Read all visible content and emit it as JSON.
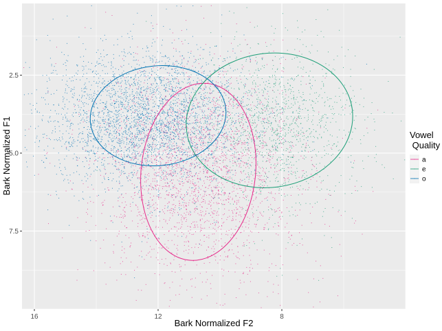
{
  "chart_data": {
    "type": "scatter",
    "xlabel": "Bark Normalized F2",
    "ylabel": "Bark Normalized F1",
    "x_reversed": true,
    "y_reversed": true,
    "xlim": [
      16.4,
      4.0
    ],
    "ylim": [
      0.2,
      10.0
    ],
    "x_ticks": [
      16,
      12,
      8
    ],
    "x_tick_labels": [
      "16",
      "12",
      "8"
    ],
    "y_ticks": [
      2.5,
      5.0,
      7.5
    ],
    "y_tick_labels": [
      "2.5",
      "5.0",
      "7.5"
    ],
    "grid": true,
    "legend": {
      "title": "Vowel\n Quality",
      "placement": "right"
    },
    "series": [
      {
        "name": "a",
        "color": "#e7298a",
        "point_cloud": {
          "center": [
            10.7,
            5.6
          ],
          "spread": [
            1.5,
            1.6
          ],
          "n": 2600
        },
        "ellipse": {
          "center": [
            10.7,
            5.6
          ],
          "rx": 1.85,
          "ry": 2.85,
          "angle_deg": 6
        }
      },
      {
        "name": "e",
        "color": "#1b9e77",
        "point_cloud": {
          "center": [
            8.1,
            4.1
          ],
          "spread": [
            1.3,
            1.2
          ],
          "n": 1300
        },
        "ellipse": {
          "center": [
            8.4,
            3.95
          ],
          "rx": 2.7,
          "ry": 2.15,
          "angle_deg": -8
        }
      },
      {
        "name": "o",
        "color": "#0072b2",
        "point_cloud": {
          "center": [
            12.4,
            3.9
          ],
          "spread": [
            1.5,
            1.0
          ],
          "n": 3200
        },
        "ellipse": {
          "center": [
            12.0,
            3.8
          ],
          "rx": 2.2,
          "ry": 1.6,
          "angle_deg": -6
        }
      }
    ]
  }
}
